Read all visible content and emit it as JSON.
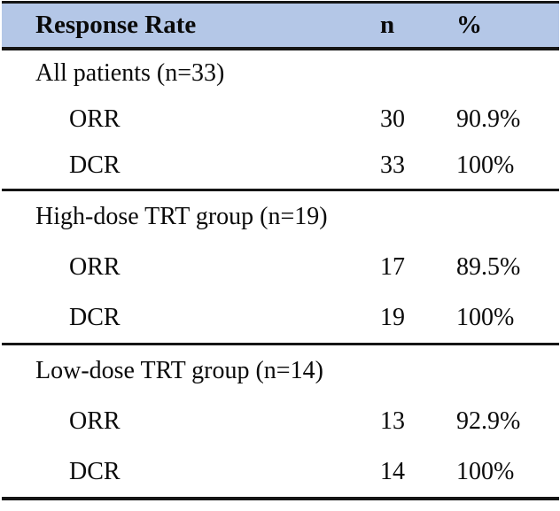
{
  "colors": {
    "header_bg": "#b4c7e7",
    "border_color": "#151515"
  },
  "table": {
    "columns": [
      "Response Rate",
      "n",
      "%"
    ],
    "sections": [
      {
        "title": "All patients (n=33)",
        "rows": [
          {
            "label": "ORR",
            "n": "30",
            "pct": "90.9%"
          },
          {
            "label": "DCR",
            "n": "33",
            "pct": "100%"
          }
        ]
      },
      {
        "title": "High-dose TRT group (n=19)",
        "rows": [
          {
            "label": "ORR",
            "n": "17",
            "pct": "89.5%"
          },
          {
            "label": "DCR",
            "n": "19",
            "pct": "100%"
          }
        ]
      },
      {
        "title": "Low-dose TRT group (n=14)",
        "rows": [
          {
            "label": "ORR",
            "n": "13",
            "pct": "92.9%"
          },
          {
            "label": "DCR",
            "n": "14",
            "pct": "100%"
          }
        ]
      }
    ]
  },
  "chart_data": {
    "type": "table",
    "title": "Response Rate",
    "columns": [
      "Response Rate",
      "n",
      "%"
    ],
    "rows": [
      [
        "All patients (n=33)",
        "",
        ""
      ],
      [
        "ORR",
        30,
        "90.9%"
      ],
      [
        "DCR",
        33,
        "100%"
      ],
      [
        "High-dose TRT group (n=19)",
        "",
        ""
      ],
      [
        "ORR",
        17,
        "89.5%"
      ],
      [
        "DCR",
        19,
        "100%"
      ],
      [
        "Low-dose TRT group (n=14)",
        "",
        ""
      ],
      [
        "ORR",
        13,
        "92.9%"
      ],
      [
        "DCR",
        14,
        "100%"
      ]
    ]
  }
}
